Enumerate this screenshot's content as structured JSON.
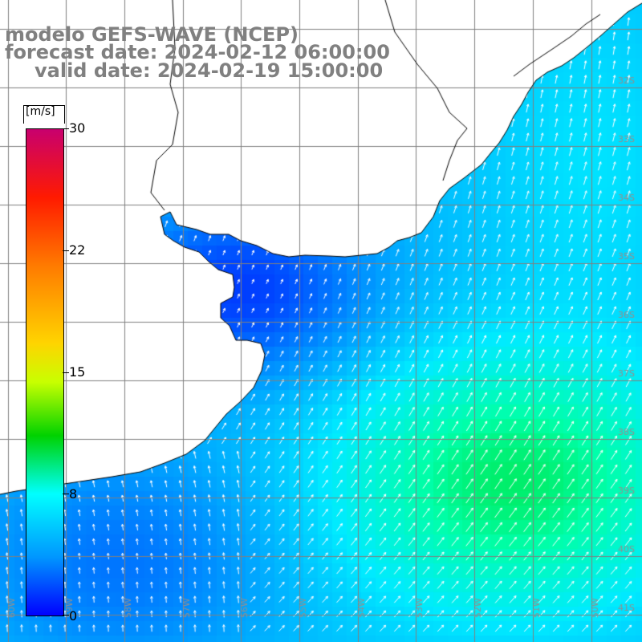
{
  "title": {
    "line1": "modelo GEFS-WAVE (NCEP)",
    "line2": "forecast date: 2024-02-12 06:00:00",
    "line3": "valid date: 2024-02-19 15:00:00"
  },
  "colorbar": {
    "units": "[m/s]",
    "ticks": [
      "30",
      "22",
      "15",
      "8",
      "0"
    ],
    "min": 0,
    "max": 30
  },
  "map": {
    "lat_labels": [
      "32S",
      "33S",
      "34S",
      "35S",
      "36S",
      "37S",
      "38S",
      "39S",
      "40S",
      "41S"
    ],
    "lon_labels": [
      "60W",
      "59W",
      "58W",
      "57W",
      "56W",
      "55W",
      "54W",
      "53W",
      "52W",
      "51W",
      "50W"
    ],
    "colors": {
      "land": "#ffffff",
      "grid": "#808080",
      "coast": "#000000",
      "arrows": "#ffffff",
      "label": "#909090"
    }
  }
}
